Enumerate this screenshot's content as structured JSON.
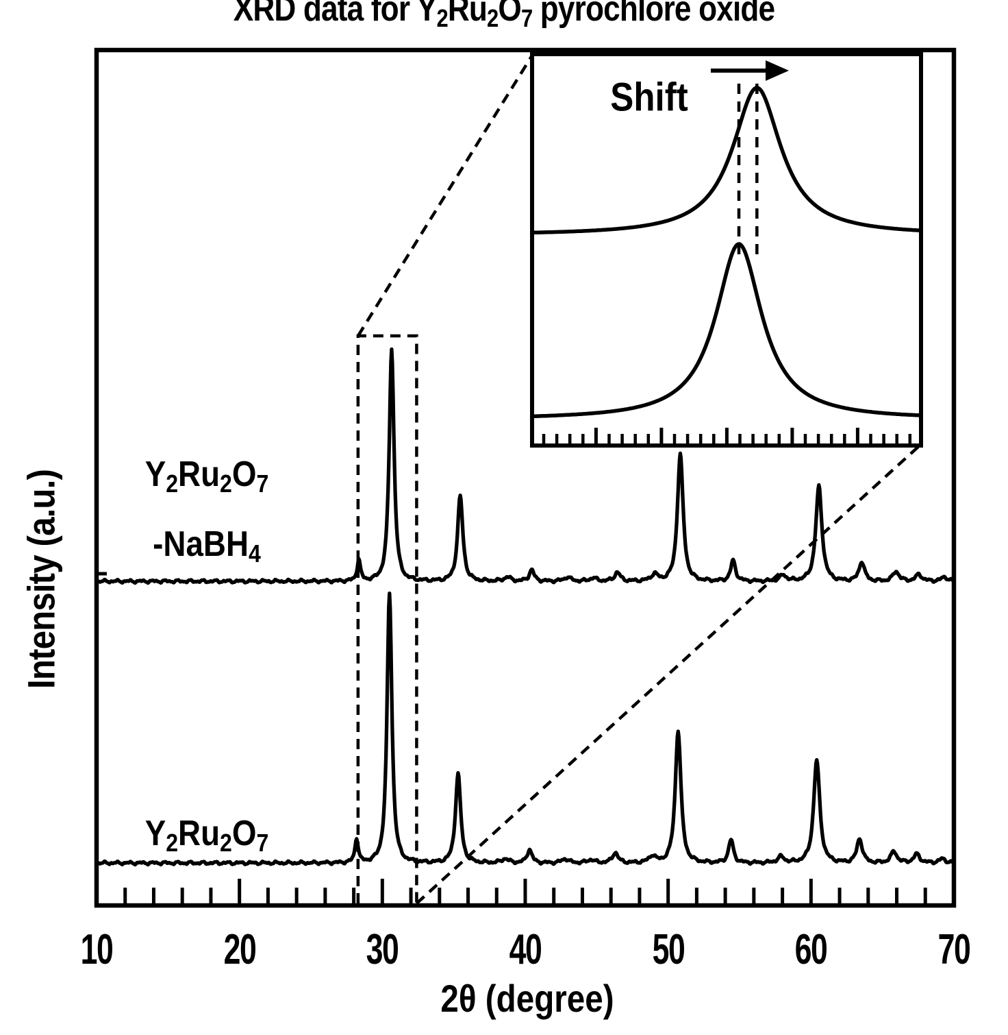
{
  "figure": {
    "title": "XRD data for Y~2~Ru~2~O~7~ pyrochlore oxide",
    "y_axis": {
      "label": "Intensity (a.u.)"
    },
    "x_axis": {
      "label": "2θ (degree)"
    },
    "series_labels": {
      "top": [
        "Y~2~Ru~2~O~7~",
        "-NaBH~4~"
      ],
      "bottom": [
        "Y~2~Ru~2~O~7~"
      ]
    },
    "inset": {
      "annotation": "Shift",
      "arrow_direction": "right"
    },
    "colors": {
      "foreground": "#000000",
      "background": "#ffffff"
    }
  },
  "chart_data": [
    {
      "type": "line",
      "title": "XRD data for Y2Ru2O7 pyrochlore oxide",
      "xlabel": "2θ (degree)",
      "ylabel": "Intensity (a.u.)",
      "xlim": [
        10,
        70
      ],
      "x_major_ticks": [
        10,
        20,
        30,
        40,
        50,
        60,
        70
      ],
      "x_minor_tick_step": 2,
      "y_units": "arbitrary units, two patterns stacked vertically, no y tick labels",
      "grid": false,
      "legend": "in-plot text labels left of curves",
      "peak_format": [
        "two_theta_deg",
        "rel_intensity",
        "hwhm_deg"
      ],
      "series": [
        {
          "name": "Y2Ru2O7 -NaBH4",
          "offset": "top",
          "peak_shift_deg": 0.15,
          "peaks": [
            [
              28.2,
              8,
              0.15
            ],
            [
              30.5,
              86,
              0.22
            ],
            [
              35.3,
              31.5,
              0.24
            ],
            [
              38.6,
              1.5,
              0.3
            ],
            [
              40.3,
              4.2,
              0.22
            ],
            [
              42.8,
              1.5,
              0.3
            ],
            [
              44.6,
              1.2,
              0.3
            ],
            [
              46.3,
              3.3,
              0.25
            ],
            [
              48.9,
              2.5,
              0.3
            ],
            [
              50.7,
              47,
              0.26
            ],
            [
              54.4,
              7.6,
              0.22
            ],
            [
              57.9,
              2.2,
              0.3
            ],
            [
              60.4,
              35,
              0.28
            ],
            [
              63.4,
              7.2,
              0.25
            ],
            [
              65.8,
              3.6,
              0.28
            ],
            [
              67.4,
              2.5,
              0.28
            ],
            [
              69.2,
              1.5,
              0.3
            ]
          ]
        },
        {
          "name": "Y2Ru2O7",
          "offset": "bottom",
          "peak_shift_deg": 0,
          "peaks": [
            [
              28.2,
              9,
              0.15
            ],
            [
              30.5,
              100,
              0.22
            ],
            [
              35.3,
              33,
              0.24
            ],
            [
              38.6,
              1.5,
              0.3
            ],
            [
              40.3,
              5,
              0.22
            ],
            [
              42.8,
              1.5,
              0.3
            ],
            [
              44.6,
              1.2,
              0.3
            ],
            [
              46.3,
              3.8,
              0.25
            ],
            [
              48.9,
              2.5,
              0.3
            ],
            [
              50.7,
              49,
              0.26
            ],
            [
              54.4,
              8.5,
              0.22
            ],
            [
              57.9,
              2.2,
              0.3
            ],
            [
              60.4,
              38,
              0.28
            ],
            [
              63.4,
              8.9,
              0.25
            ],
            [
              65.8,
              4.2,
              0.28
            ],
            [
              67.4,
              3.2,
              0.28
            ],
            [
              69.2,
              1.5,
              0.3
            ]
          ]
        }
      ],
      "highlight_box_two_theta": [
        28.3,
        32.4
      ]
    },
    {
      "type": "line",
      "role": "inset zoom of strongest peak region marked by dashed box",
      "annotation": "Shift",
      "arrow": "points right",
      "xlim_two_theta": [
        28.3,
        32.4
      ],
      "series": [
        {
          "name": "Y2Ru2O7 -NaBH4",
          "position": "upper",
          "peak_two_theta": 30.67
        },
        {
          "name": "Y2Ru2O7",
          "position": "lower",
          "peak_two_theta": 30.48
        }
      ],
      "dashed_guides_two_theta": [
        30.48,
        30.67
      ]
    }
  ]
}
